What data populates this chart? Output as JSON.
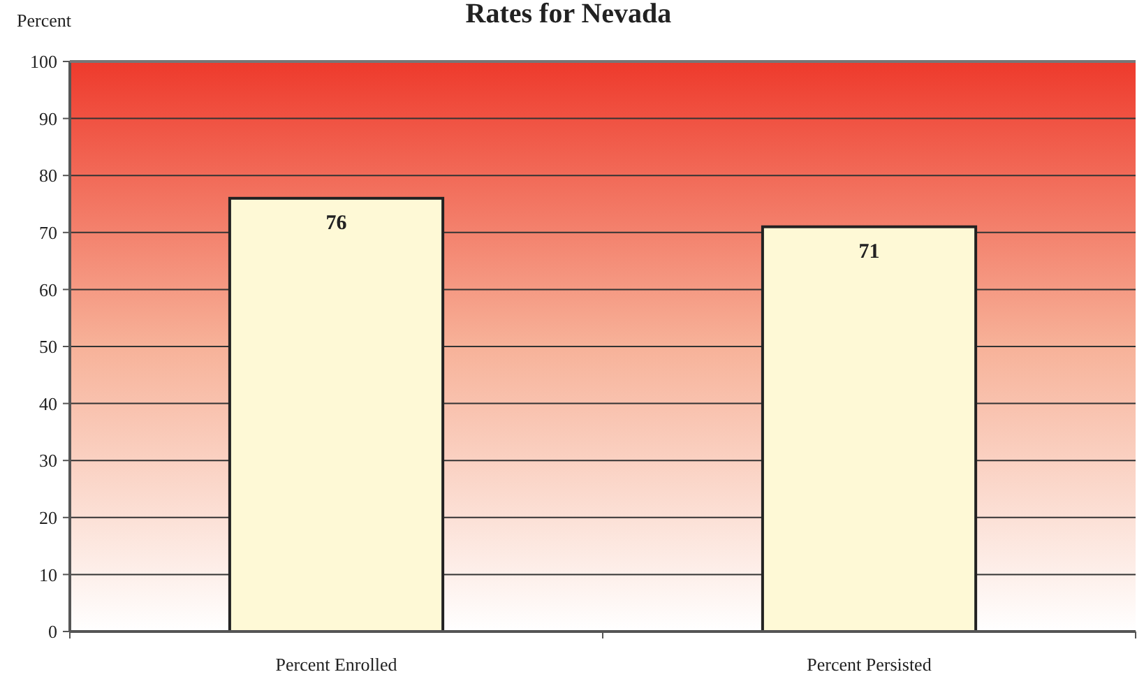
{
  "chart_data": {
    "type": "bar",
    "title": "Rates for Nevada",
    "ylabel": "Percent",
    "categories": [
      "Percent Enrolled",
      "Percent Persisted"
    ],
    "values": [
      76,
      71
    ],
    "color": "#fef9d6",
    "ylim": [
      0,
      100
    ],
    "yticks": [
      0,
      10,
      20,
      30,
      40,
      50,
      60,
      70,
      80,
      90,
      100
    ],
    "grid": "y",
    "data_labels": true
  }
}
